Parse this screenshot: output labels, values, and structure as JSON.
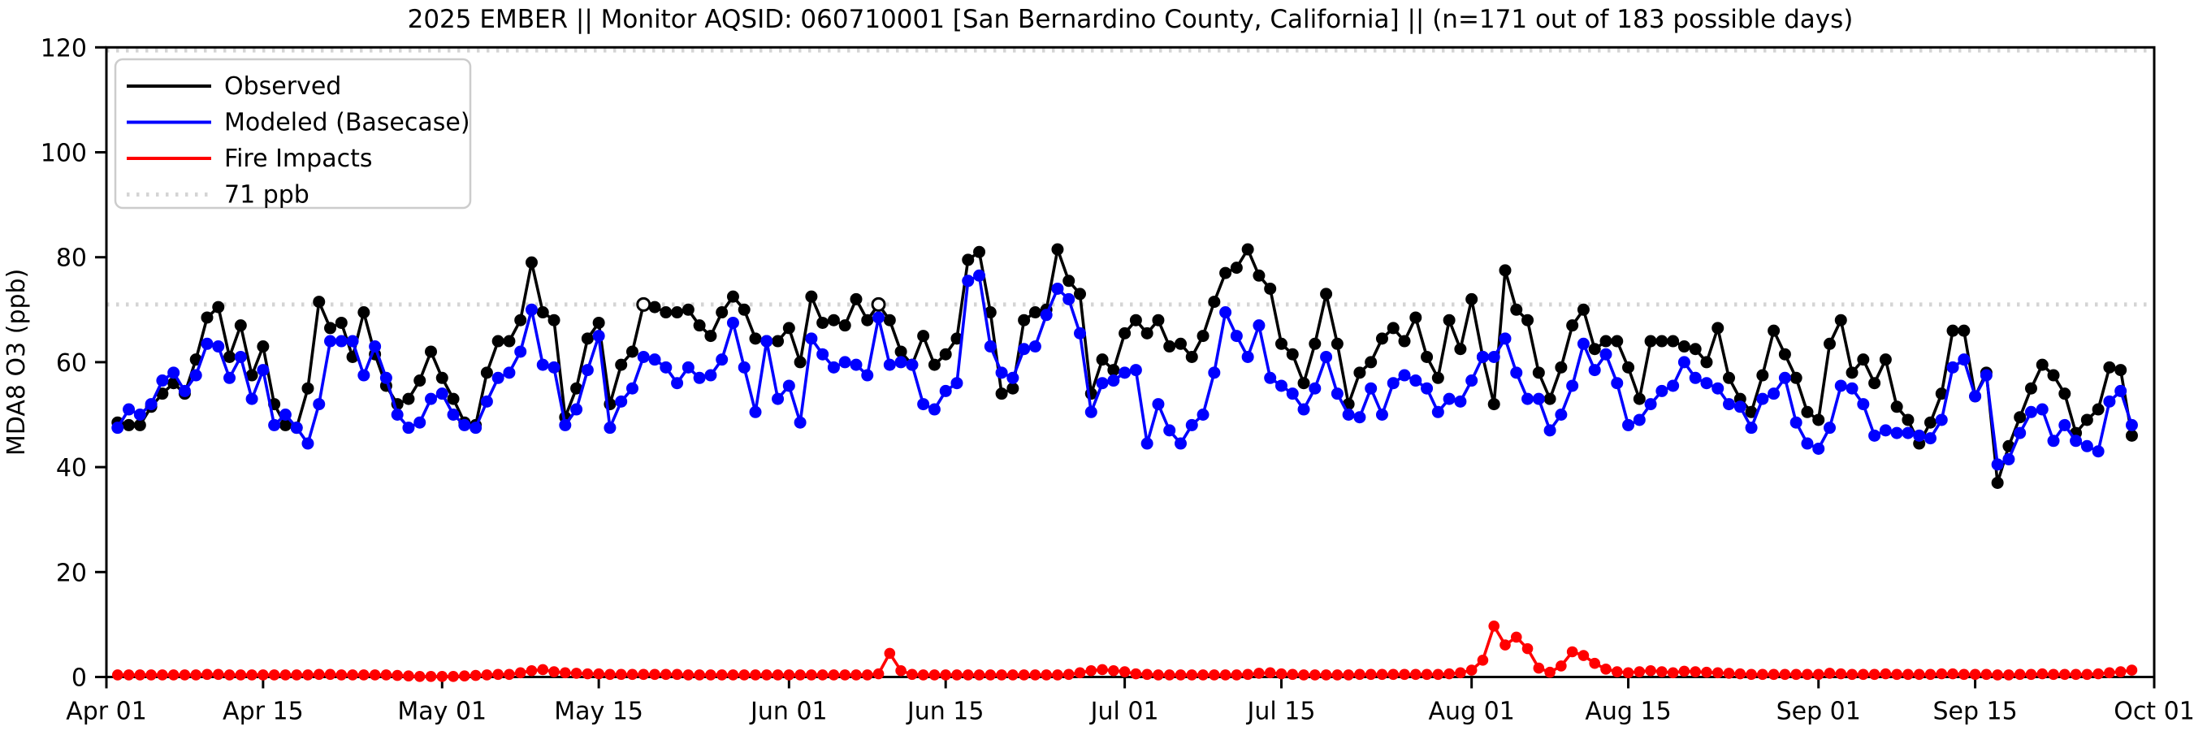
{
  "page_title": "2025 EMBER || Monitor AQSID: 060710001 [San Bernardino County, California] || (n=171 out of 183 possible days)",
  "chart_data": {
    "type": "line",
    "title": "2025 EMBER || Monitor AQSID: 060710001 [San Bernardino County, California] || (n=171 out of 183 possible days)",
    "xlabel": "",
    "ylabel": "MDA8 O3 (ppb)",
    "ylim": [
      0,
      120
    ],
    "y_ticks": [
      0,
      20,
      40,
      60,
      80,
      100,
      120
    ],
    "grid": false,
    "legend_position": "upper-left",
    "days_total": 183,
    "x_start_label": "Apr 01",
    "x_end_label": "Oct 01",
    "x_ticks": [
      {
        "day": 0,
        "label": "Apr 01"
      },
      {
        "day": 14,
        "label": "Apr 15"
      },
      {
        "day": 30,
        "label": "May 01"
      },
      {
        "day": 44,
        "label": "May 15"
      },
      {
        "day": 61,
        "label": "Jun 01"
      },
      {
        "day": 75,
        "label": "Jun 15"
      },
      {
        "day": 91,
        "label": "Jul 01"
      },
      {
        "day": 105,
        "label": "Jul 15"
      },
      {
        "day": 122,
        "label": "Aug 01"
      },
      {
        "day": 136,
        "label": "Aug 15"
      },
      {
        "day": 153,
        "label": "Sep 01"
      },
      {
        "day": 167,
        "label": "Sep 15"
      },
      {
        "day": 183,
        "label": "Oct 01"
      }
    ],
    "reference_lines": [
      {
        "value": 71,
        "label": "71 ppb",
        "color": "#d4d4d4",
        "style": "dotted"
      },
      {
        "value": 119.4,
        "label": null,
        "color": "#d4d4d4",
        "style": "dotted"
      }
    ],
    "legend": [
      "Observed",
      "Modeled (Basecase)",
      "Fire Impacts",
      "71 ppb"
    ],
    "open_marker_days": {
      "Observed": [
        48,
        69
      ]
    },
    "series": [
      {
        "name": "Observed",
        "color": "#000000",
        "values": [
          null,
          48.5,
          48,
          48,
          51.5,
          54,
          56,
          54,
          60.5,
          68.5,
          70.5,
          61,
          67,
          57.5,
          63,
          52,
          48,
          47.5,
          55,
          71.5,
          66.5,
          67.5,
          61,
          69.5,
          61.5,
          55.5,
          52,
          53,
          56.5,
          62,
          57,
          53,
          48.5,
          48,
          58,
          64,
          64,
          68,
          79,
          69.5,
          68,
          49.5,
          55,
          64.5,
          67.5,
          52,
          59.5,
          62,
          71,
          70.5,
          69.5,
          69.5,
          70,
          67,
          65,
          69.5,
          72.5,
          70,
          64.5,
          64,
          64,
          66.5,
          60,
          72.5,
          67.5,
          68,
          67,
          72,
          68,
          71,
          68,
          62,
          59.5,
          65,
          59.5,
          61.5,
          64.5,
          79.5,
          81,
          69.5,
          54,
          55,
          68,
          69.5,
          70,
          81.5,
          75.5,
          73,
          54,
          60.5,
          58.5,
          65.5,
          68,
          65.5,
          68,
          63,
          63.5,
          61,
          65,
          71.5,
          77,
          78,
          81.5,
          76.5,
          74,
          63.5,
          61.5,
          56,
          63.5,
          73,
          63.5,
          52,
          58,
          60,
          64.5,
          66.5,
          64,
          68.5,
          61,
          57,
          68,
          62.5,
          72,
          61,
          52,
          77.5,
          70,
          68,
          58,
          53,
          59,
          67,
          70,
          62.5,
          64,
          64,
          59,
          53,
          64,
          64,
          64,
          63,
          62.5,
          60,
          66.5,
          57,
          53,
          50.5,
          57.5,
          66,
          61.5,
          57,
          50.5,
          49,
          63.5,
          68,
          58,
          60.5,
          56,
          60.5,
          51.5,
          49,
          44.5,
          48.5,
          54,
          66,
          66,
          53.5,
          58,
          37,
          44,
          49.5,
          55,
          59.5,
          57.5,
          54,
          46.5,
          49,
          51,
          59,
          58.5,
          46,
          null
        ]
      },
      {
        "name": "Modeled (Basecase)",
        "color": "#0000ff",
        "values": [
          null,
          47.5,
          51,
          50,
          52,
          56.5,
          58,
          54.5,
          57.5,
          63.5,
          63,
          57,
          61,
          53,
          58.5,
          48,
          50,
          47.5,
          44.5,
          52,
          64,
          64,
          64,
          57.5,
          63,
          57,
          50,
          47.5,
          48.5,
          53,
          54,
          50,
          48,
          47.5,
          52.5,
          57,
          58,
          62,
          70,
          59.5,
          59,
          48,
          51,
          58.5,
          65,
          47.5,
          52.5,
          55,
          61,
          60.5,
          59,
          56,
          59,
          57,
          57.5,
          60.5,
          67.5,
          59,
          50.5,
          64,
          53,
          55.5,
          48.5,
          64.5,
          61.5,
          59,
          60,
          59.5,
          57.5,
          68.5,
          59.5,
          60,
          59.5,
          52,
          51,
          54.5,
          56,
          75.5,
          76.5,
          63,
          58,
          57,
          62.5,
          63,
          69,
          74,
          72,
          65.5,
          50.5,
          56,
          56.5,
          58,
          58.5,
          44.5,
          52,
          47,
          44.5,
          48,
          50,
          58,
          69.5,
          65,
          61,
          67,
          57,
          55.5,
          54,
          51,
          55,
          61,
          54,
          50,
          49.5,
          55,
          50,
          56,
          57.5,
          56.5,
          55,
          50.5,
          53,
          52.5,
          56.5,
          61,
          61,
          64.5,
          58,
          53,
          53,
          47,
          50,
          55.5,
          63.5,
          58.5,
          61.5,
          56,
          48,
          49,
          52,
          54.5,
          55.5,
          60,
          57,
          56,
          55,
          52,
          51.5,
          47.5,
          53,
          54,
          57,
          48.5,
          44.5,
          43.5,
          47.5,
          55.5,
          55,
          52,
          46,
          47,
          46.5,
          46.5,
          46,
          45.5,
          49,
          59,
          60.5,
          53.5,
          57.5,
          40.5,
          41.5,
          46.5,
          50.5,
          51,
          45,
          48,
          45,
          44,
          43,
          52.5,
          54.5,
          48,
          null
        ]
      },
      {
        "name": "Fire Impacts",
        "color": "#ff0000",
        "values": [
          null,
          0.4,
          0.4,
          0.4,
          0.4,
          0.4,
          0.4,
          0.4,
          0.4,
          0.5,
          0.5,
          0.4,
          0.4,
          0.4,
          0.4,
          0.4,
          0.4,
          0.4,
          0.4,
          0.5,
          0.5,
          0.4,
          0.4,
          0.4,
          0.4,
          0.4,
          0.3,
          0.2,
          0.1,
          0.1,
          0.1,
          0.1,
          0.2,
          0.3,
          0.4,
          0.5,
          0.5,
          0.8,
          1.2,
          1.4,
          1.0,
          0.8,
          0.7,
          0.6,
          0.6,
          0.5,
          0.5,
          0.5,
          0.5,
          0.5,
          0.5,
          0.5,
          0.4,
          0.4,
          0.4,
          0.4,
          0.4,
          0.4,
          0.4,
          0.4,
          0.4,
          0.4,
          0.4,
          0.4,
          0.4,
          0.4,
          0.4,
          0.4,
          0.4,
          0.6,
          4.5,
          1.2,
          0.5,
          0.4,
          0.4,
          0.4,
          0.4,
          0.4,
          0.4,
          0.4,
          0.4,
          0.4,
          0.4,
          0.4,
          0.4,
          0.4,
          0.5,
          0.8,
          1.2,
          1.4,
          1.2,
          1.0,
          0.6,
          0.5,
          0.4,
          0.4,
          0.4,
          0.4,
          0.4,
          0.4,
          0.4,
          0.4,
          0.5,
          0.7,
          0.8,
          0.6,
          0.5,
          0.4,
          0.4,
          0.4,
          0.4,
          0.4,
          0.5,
          0.5,
          0.5,
          0.5,
          0.5,
          0.5,
          0.5,
          0.5,
          0.6,
          0.8,
          1.3,
          3.2,
          9.7,
          6.1,
          7.6,
          5.4,
          1.7,
          0.9,
          2.1,
          4.8,
          4.1,
          2.6,
          1.5,
          1.0,
          0.8,
          1.0,
          1.2,
          1.0,
          0.8,
          1.1,
          1.0,
          0.9,
          0.8,
          0.7,
          0.6,
          0.5,
          0.5,
          0.5,
          0.5,
          0.5,
          0.5,
          0.5,
          0.7,
          0.6,
          0.5,
          0.5,
          0.5,
          0.6,
          0.5,
          0.5,
          0.5,
          0.5,
          0.6,
          0.6,
          0.5,
          0.5,
          0.5,
          0.4,
          0.4,
          0.5,
          0.5,
          0.6,
          0.5,
          0.5,
          0.5,
          0.5,
          0.6,
          0.8,
          1.0,
          1.3,
          null
        ]
      }
    ]
  }
}
